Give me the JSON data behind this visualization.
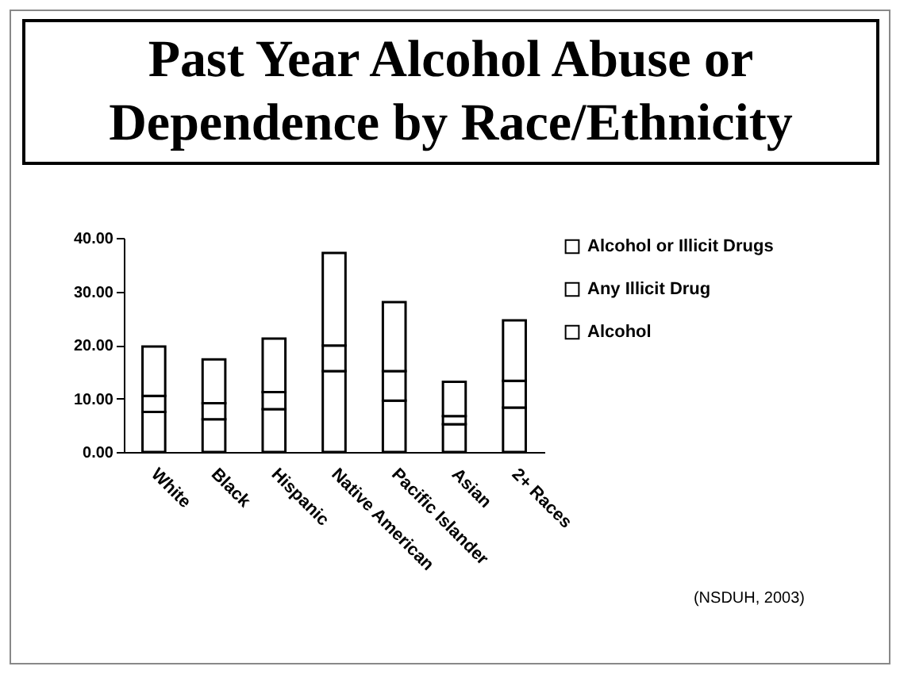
{
  "chart_data": {
    "type": "bar",
    "title": "Past Year Alcohol Abuse or Dependence by Race/Ethnicity",
    "categories": [
      "White",
      "Black",
      "Hispanic",
      "Native American",
      "Pacific Islander",
      "Asian",
      "2+ Races"
    ],
    "stacked": true,
    "series": [
      {
        "name": "Alcohol",
        "color": "#ffffff",
        "values": [
          7.5,
          6.1,
          8.0,
          15.1,
          9.6,
          5.2,
          8.3
        ]
      },
      {
        "name": "Any Illicit Drug",
        "color": "#ffffff",
        "values": [
          3.0,
          3.0,
          3.2,
          4.8,
          5.5,
          1.5,
          5.0
        ]
      },
      {
        "name": "Alcohol or Illicit Drugs",
        "color": "#ffffff",
        "values": [
          9.2,
          8.2,
          10.0,
          17.3,
          12.9,
          6.4,
          11.3
        ]
      }
    ],
    "ylim": [
      0,
      40
    ],
    "yticks": [
      {
        "value": 0,
        "label": "0.00"
      },
      {
        "value": 10,
        "label": "10.00"
      },
      {
        "value": 20,
        "label": "20.00"
      },
      {
        "value": 30,
        "label": "30.00"
      },
      {
        "value": 40,
        "label": "40.00"
      }
    ],
    "grid": false,
    "legend": "right",
    "annotations": [
      "(NSDUH, 2003)"
    ]
  }
}
